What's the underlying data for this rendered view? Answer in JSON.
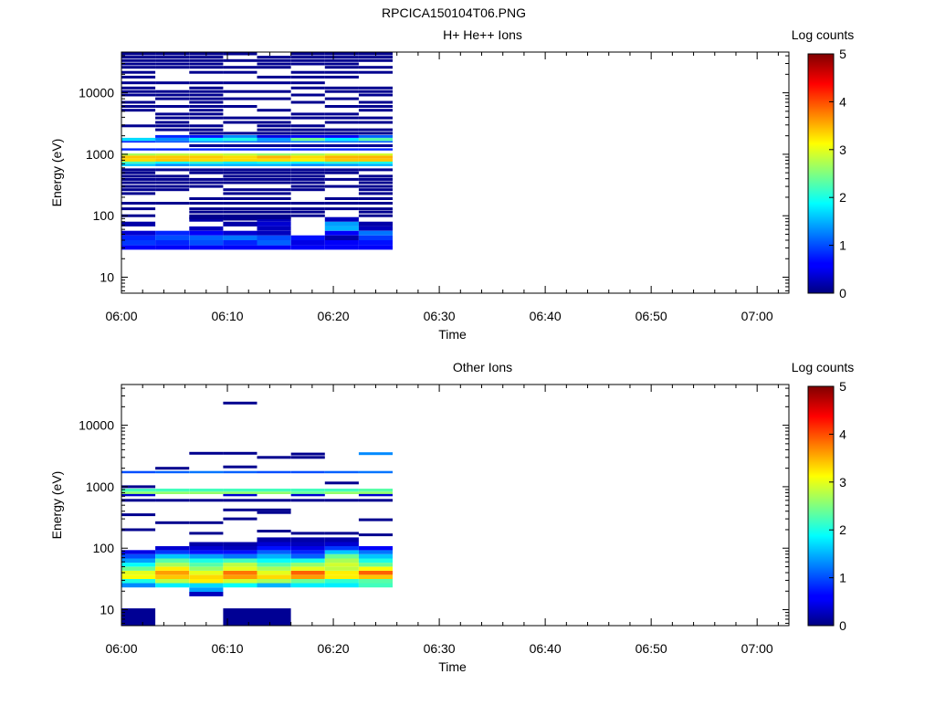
{
  "figure_title": "RPCICA150104T06.PNG",
  "chart_data": [
    {
      "type": "heatmap",
      "title": "H+ He++ Ions",
      "xlabel": "Time",
      "ylabel": "Energy (eV)",
      "x_ticks": [
        "06:00",
        "06:10",
        "06:20",
        "06:30",
        "06:40",
        "06:50",
        "07:00"
      ],
      "xlim_minutes": [
        0,
        63
      ],
      "y_scale": "log",
      "ylim": [
        5.5,
        46000
      ],
      "y_ticks": [
        10,
        100,
        1000,
        10000
      ],
      "colorbar": {
        "label": "Log counts",
        "range": [
          0,
          5
        ],
        "ticks": [
          0,
          1,
          2,
          3,
          4,
          5
        ]
      },
      "time_bins_minutes": [
        0,
        3.2,
        6.4,
        9.6,
        12.8,
        16,
        19.2,
        22.4,
        25.6
      ],
      "bands": [
        {
          "e": [
            28,
            33
          ],
          "v": [
            0.6,
            0.6,
            0.6,
            0.6,
            0.6,
            0.6,
            0.6,
            0.6
          ]
        },
        {
          "e": [
            33,
            40
          ],
          "v": [
            0.9,
            0.8,
            1.0,
            0.8,
            1.1,
            0.5,
            0.6,
            0.7
          ]
        },
        {
          "e": [
            40,
            48
          ],
          "v": [
            0.8,
            1.0,
            1.1,
            1.2,
            1.0,
            0.7,
            0.2,
            0.9
          ]
        },
        {
          "e": [
            48,
            57
          ],
          "v": [
            0.4,
            0.8,
            0.6,
            0.4,
            0.3,
            null,
            0.6,
            1.2
          ]
        },
        {
          "e": [
            57,
            67
          ],
          "v": [
            null,
            null,
            0.3,
            null,
            0.3,
            null,
            1.5,
            0.3
          ]
        },
        {
          "e": [
            67,
            80
          ],
          "v": [
            0.2,
            null,
            null,
            0.2,
            0.4,
            null,
            1.4,
            0.2
          ]
        },
        {
          "e": [
            80,
            95
          ],
          "v": [
            null,
            null,
            0.2,
            null,
            0.3,
            null,
            0.3,
            null
          ]
        },
        {
          "e": [
            1550,
            1650
          ],
          "v": [
            0.8,
            1.0,
            1.3,
            1.2,
            1.1,
            1.2,
            1.2,
            1.1
          ]
        },
        {
          "e": [
            1650,
            1850
          ],
          "v": [
            1.7,
            1.3,
            1.8,
            2.0,
            1.4,
            2.4,
            1.8,
            2.3
          ]
        },
        {
          "e": [
            1850,
            2050
          ],
          "v": [
            null,
            0.8,
            0.7,
            1.3,
            0.5,
            0.6,
            0.6,
            1.1
          ]
        },
        {
          "e": [
            1150,
            1250
          ],
          "v": [
            0.8,
            0.8,
            0.8,
            0.8,
            0.8,
            0.8,
            0.8,
            0.8
          ]
        },
        {
          "e": [
            950,
            1030
          ],
          "v": [
            2.7,
            2.8,
            2.9,
            2.8,
            2.6,
            2.7,
            2.9,
            2.9
          ]
        },
        {
          "e": [
            850,
            950
          ],
          "v": [
            3.4,
            3.4,
            3.4,
            3.3,
            3.5,
            3.3,
            3.5,
            3.5
          ]
        },
        {
          "e": [
            760,
            850
          ],
          "v": [
            3.3,
            3.4,
            3.3,
            3.3,
            3.3,
            3.2,
            3.4,
            3.4
          ]
        },
        {
          "e": [
            700,
            760
          ],
          "v": [
            2.2,
            1.9,
            2.1,
            1.8,
            2.0,
            1.9,
            2.1,
            2.0
          ]
        },
        {
          "e": [
            640,
            700
          ],
          "v": [
            1.6,
            1.3,
            1.5,
            1.5,
            1.5,
            1.3,
            1.4,
            1.5
          ]
        }
      ],
      "lines": [
        {
          "e": 43000,
          "cols": [
            0,
            1,
            2,
            3,
            5,
            6,
            7
          ]
        },
        {
          "e": 38000,
          "cols": [
            0,
            1,
            2,
            4,
            5,
            6,
            7
          ]
        },
        {
          "e": 33500,
          "cols": [
            0,
            1,
            2,
            3,
            4,
            5,
            6,
            7
          ]
        },
        {
          "e": 29500,
          "cols": [
            0,
            1,
            2,
            4,
            5,
            6
          ]
        },
        {
          "e": 26000,
          "cols": [
            0,
            1,
            2,
            3,
            4,
            6,
            7
          ]
        },
        {
          "e": 21500,
          "cols": [
            0,
            2,
            3,
            5,
            6,
            7
          ]
        },
        {
          "e": 18000,
          "cols": [
            0,
            4,
            5,
            6
          ]
        },
        {
          "e": 14500,
          "cols": [
            0,
            1,
            2,
            3,
            4,
            5
          ]
        },
        {
          "e": 12000,
          "cols": [
            0,
            2,
            5,
            6,
            7
          ]
        },
        {
          "e": 10500,
          "cols": [
            0,
            1,
            2,
            3,
            4,
            6,
            7
          ]
        },
        {
          "e": 9200,
          "cols": [
            0,
            1,
            2,
            5,
            7
          ]
        },
        {
          "e": 8000,
          "cols": [
            1,
            2,
            3,
            4,
            6
          ]
        },
        {
          "e": 7000,
          "cols": [
            0,
            2,
            5,
            7
          ]
        },
        {
          "e": 6000,
          "cols": [
            0,
            1,
            2,
            3,
            6,
            7
          ]
        },
        {
          "e": 5200,
          "cols": [
            0,
            2,
            4,
            7
          ]
        },
        {
          "e": 4500,
          "cols": [
            1,
            2,
            5,
            6
          ]
        },
        {
          "e": 3900,
          "cols": [
            1,
            2,
            3,
            4,
            5,
            6,
            7
          ]
        },
        {
          "e": 3300,
          "cols": [
            1,
            3,
            4,
            6,
            7
          ]
        },
        {
          "e": 2900,
          "cols": [
            0,
            1,
            2,
            4,
            5
          ]
        },
        {
          "e": 2500,
          "cols": [
            1,
            2,
            4,
            5,
            6,
            7
          ]
        },
        {
          "e": 2200,
          "cols": [
            2,
            3,
            4,
            5,
            6,
            7
          ]
        },
        {
          "e": 1380,
          "cols": [
            2,
            3,
            4,
            5,
            6,
            7
          ]
        },
        {
          "e": 560,
          "cols": [
            0,
            1,
            2,
            3,
            4,
            5,
            6,
            7
          ]
        },
        {
          "e": 500,
          "cols": [
            0,
            2,
            3,
            4,
            5,
            6
          ]
        },
        {
          "e": 440,
          "cols": [
            0,
            1,
            3,
            4,
            5,
            7
          ]
        },
        {
          "e": 390,
          "cols": [
            0,
            1,
            2,
            3,
            4,
            5,
            6,
            7
          ]
        },
        {
          "e": 345,
          "cols": [
            0,
            1,
            2,
            3,
            4,
            5,
            7
          ]
        },
        {
          "e": 300,
          "cols": [
            0,
            1,
            2,
            5,
            6,
            7
          ]
        },
        {
          "e": 265,
          "cols": [
            0,
            1,
            3,
            4,
            5,
            7
          ]
        },
        {
          "e": 230,
          "cols": [
            0,
            3,
            4,
            7
          ]
        },
        {
          "e": 190,
          "cols": [
            2,
            3,
            4,
            6,
            7
          ]
        },
        {
          "e": 160,
          "cols": [
            0,
            1,
            2,
            3,
            4,
            5,
            6,
            7
          ]
        },
        {
          "e": 130,
          "cols": [
            0,
            2,
            3,
            4,
            5,
            6,
            7
          ]
        },
        {
          "e": 115,
          "cols": [
            2,
            3,
            4,
            5,
            7
          ]
        },
        {
          "e": 100,
          "cols": [
            0,
            2,
            3,
            4,
            5,
            7
          ]
        },
        {
          "e": 92,
          "cols": [
            2,
            3,
            4
          ]
        },
        {
          "e": 88,
          "cols": [
            3
          ]
        }
      ]
    },
    {
      "type": "heatmap",
      "title": "Other Ions",
      "xlabel": "Time",
      "ylabel": "Energy (eV)",
      "x_ticks": [
        "06:00",
        "06:10",
        "06:20",
        "06:30",
        "06:40",
        "06:50",
        "07:00"
      ],
      "xlim_minutes": [
        0,
        63
      ],
      "y_scale": "log",
      "ylim": [
        5.5,
        46000
      ],
      "y_ticks": [
        10,
        100,
        1000,
        10000
      ],
      "colorbar": {
        "label": "Log counts",
        "range": [
          0,
          5
        ],
        "ticks": [
          0,
          1,
          2,
          3,
          4,
          5
        ]
      },
      "time_bins_minutes": [
        0,
        3.2,
        6.4,
        9.6,
        12.8,
        16,
        19.2,
        22.4,
        25.6
      ],
      "bands": [
        {
          "e": [
            5.5,
            10.5
          ],
          "v": [
            0.1,
            null,
            null,
            0.1,
            0.1,
            null,
            null,
            null
          ]
        },
        {
          "e": [
            16.5,
            19.5
          ],
          "v": [
            null,
            null,
            0.3,
            null,
            null,
            null,
            null,
            null
          ]
        },
        {
          "e": [
            19.5,
            23
          ],
          "v": [
            null,
            null,
            1.4,
            null,
            null,
            null,
            null,
            null
          ]
        },
        {
          "e": [
            23,
            27
          ],
          "v": [
            1.3,
            1.8,
            1.7,
            1.9,
            1.5,
            1.8,
            1.8,
            2.2
          ]
        },
        {
          "e": [
            27,
            31.5
          ],
          "v": [
            2.0,
            2.8,
            3.2,
            2.9,
            2.7,
            2.4,
            2.1,
            2.3
          ]
        },
        {
          "e": [
            31.5,
            37
          ],
          "v": [
            3.1,
            3.4,
            3.3,
            3.6,
            3.3,
            3.6,
            3.2,
            3.4
          ]
        },
        {
          "e": [
            37,
            43
          ],
          "v": [
            3.0,
            3.6,
            3.0,
            3.8,
            3.0,
            3.9,
            3.2,
            3.9
          ]
        },
        {
          "e": [
            43,
            50
          ],
          "v": [
            2.4,
            3.2,
            2.6,
            3.0,
            2.7,
            3.0,
            2.8,
            3.1
          ]
        },
        {
          "e": [
            50,
            58
          ],
          "v": [
            1.9,
            2.7,
            2.3,
            2.8,
            2.3,
            2.6,
            2.9,
            2.4
          ]
        },
        {
          "e": [
            58,
            68
          ],
          "v": [
            1.4,
            2.3,
            2.0,
            2.2,
            1.9,
            2.0,
            2.7,
            2.0
          ]
        },
        {
          "e": [
            68,
            80
          ],
          "v": [
            1.0,
            1.6,
            1.4,
            1.2,
            1.5,
            1.1,
            2.4,
            1.6
          ]
        },
        {
          "e": [
            80,
            93
          ],
          "v": [
            0.5,
            0.9,
            0.7,
            0.7,
            1.1,
            0.8,
            1.6,
            1.2
          ]
        },
        {
          "e": [
            93,
            108
          ],
          "v": [
            null,
            0.4,
            0.4,
            0.3,
            0.7,
            0.5,
            0.9,
            0.6
          ]
        },
        {
          "e": [
            108,
            126
          ],
          "v": [
            null,
            null,
            0.2,
            0.2,
            0.4,
            0.3,
            0.4,
            null
          ]
        },
        {
          "e": [
            126,
            150
          ],
          "v": [
            null,
            null,
            null,
            null,
            0.2,
            0.2,
            0.2,
            null
          ]
        },
        {
          "e": [
            830,
            930
          ],
          "v": [
            2.2,
            2.2,
            2.2,
            2.2,
            2.2,
            2.2,
            2.2,
            2.3
          ]
        },
        {
          "e": [
            760,
            830
          ],
          "v": [
            2.6,
            2.6,
            2.6,
            2.6,
            2.6,
            2.4,
            2.6,
            2.6
          ]
        },
        {
          "e": [
            700,
            760
          ],
          "v": [
            0.4,
            null,
            null,
            0.4,
            null,
            0.4,
            null,
            0.4
          ]
        },
        {
          "e": [
            1650,
            1800
          ],
          "v": [
            1.0,
            1.1,
            1.2,
            1.1,
            1.0,
            1.0,
            1.1,
            1.2
          ]
        }
      ],
      "lines": [
        {
          "e": 23000,
          "cols": [
            3
          ]
        },
        {
          "e": 3500,
          "cols": [
            2,
            3
          ]
        },
        {
          "e": 3400,
          "cols": [
            5
          ]
        },
        {
          "e": 3000,
          "cols": [
            4,
            5
          ]
        },
        {
          "e": 2100,
          "cols": [
            3
          ]
        },
        {
          "e": 2000,
          "cols": [
            1
          ]
        },
        {
          "e": 1150,
          "cols": [
            6
          ]
        },
        {
          "e": 1000,
          "cols": [
            0
          ]
        },
        {
          "e": 600,
          "cols": [
            0,
            1,
            2,
            3,
            4,
            5,
            6,
            7
          ]
        },
        {
          "e": 420,
          "cols": [
            3,
            4
          ]
        },
        {
          "e": 380,
          "cols": [
            4
          ]
        },
        {
          "e": 350,
          "cols": [
            0
          ]
        },
        {
          "e": 300,
          "cols": [
            3
          ]
        },
        {
          "e": 290,
          "cols": [
            7
          ]
        },
        {
          "e": 260,
          "cols": [
            1,
            2
          ]
        },
        {
          "e": 200,
          "cols": [
            0
          ]
        },
        {
          "e": 190,
          "cols": [
            4
          ]
        },
        {
          "e": 175,
          "cols": [
            2,
            5,
            6
          ]
        },
        {
          "e": 165,
          "cols": [
            7
          ]
        }
      ],
      "colored_lines": [
        {
          "e": 3450,
          "col": 7,
          "v": 1.3
        }
      ]
    }
  ]
}
